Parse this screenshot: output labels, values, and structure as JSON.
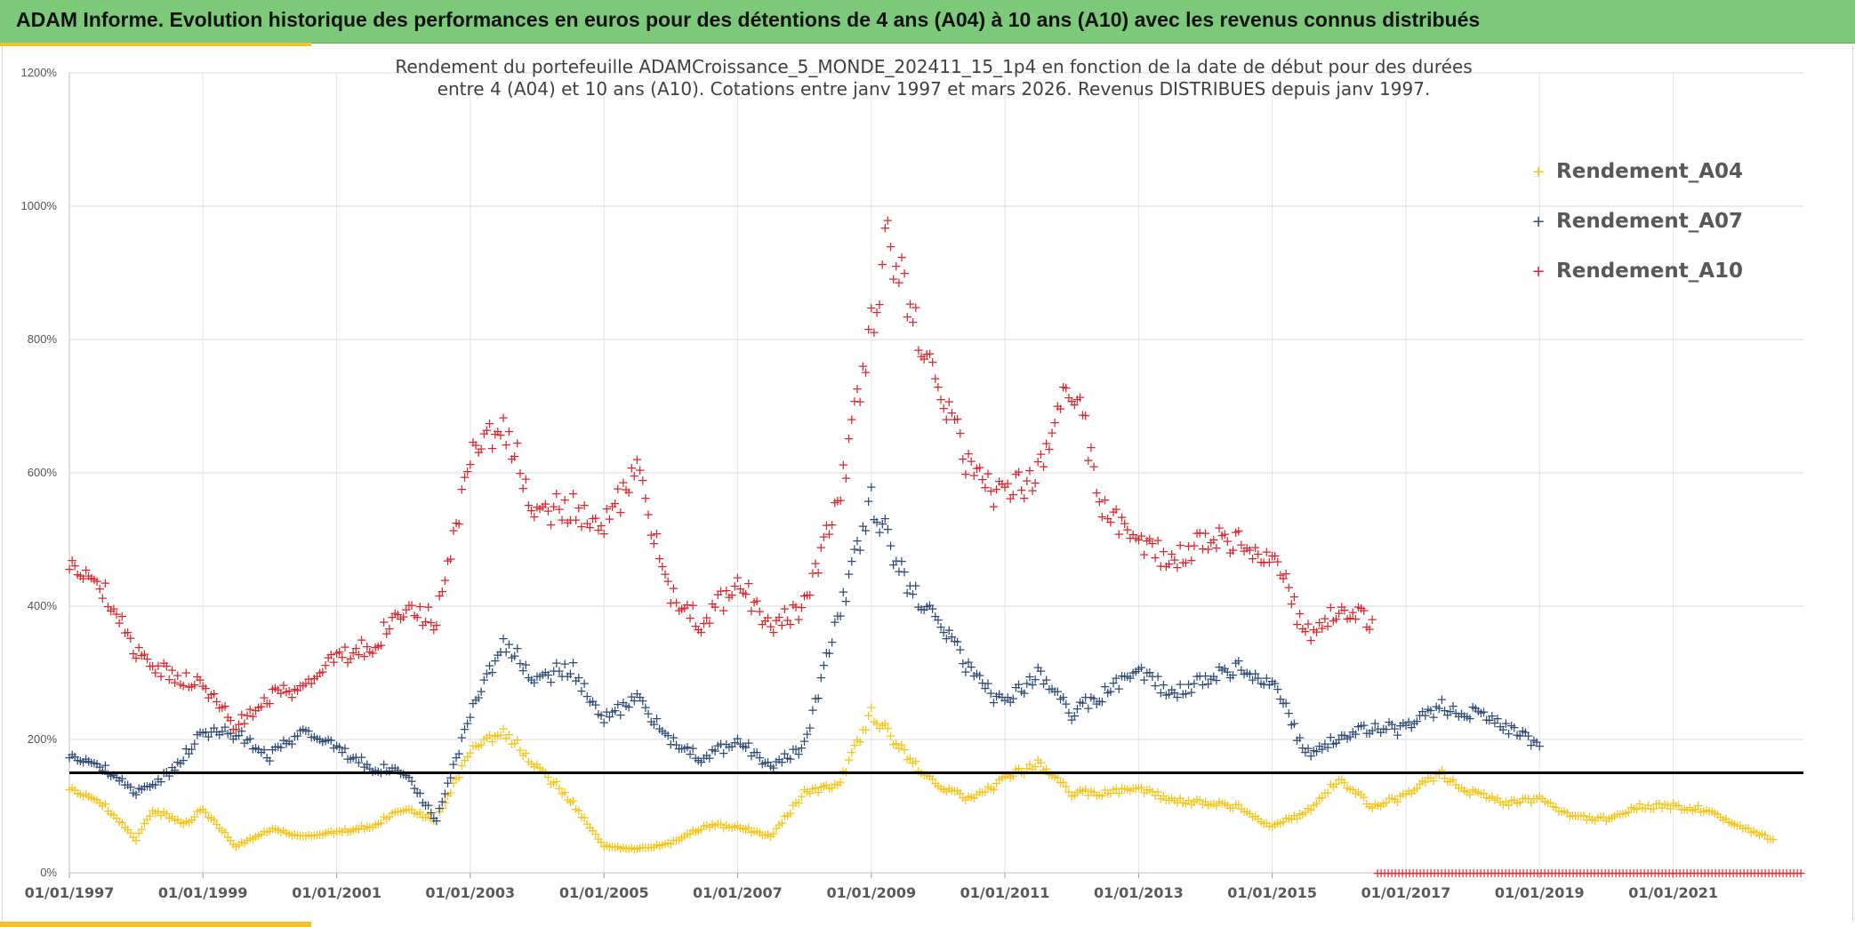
{
  "header": {
    "title": "ADAM Informe. Evolution historique des performances en euros pour des détentions de 4 ans (A04) à 10 ans (A10) avec les revenus connus distribués"
  },
  "chart_data": {
    "type": "scatter",
    "title_line1": "Rendement du portefeuille ADAMCroissance_5_MONDE_202411_15_1p4  en fonction de la date de début pour des durées",
    "title_line2": "entre 4 (A04) et 10 ans (A10). Cotations entre janv 1997 et mars 2026. Revenus DISTRIBUES depuis janv 1997.",
    "xlabel": "",
    "ylabel": "",
    "x_range": [
      "01/01/1997",
      "01/01/2023"
    ],
    "ylim": [
      0,
      1200
    ],
    "y_ticks": [
      "0%",
      "200%",
      "400%",
      "600%",
      "800%",
      "1000%",
      "1200%"
    ],
    "y_tick_values": [
      0,
      200,
      400,
      600,
      800,
      1000,
      1200
    ],
    "x_ticks": [
      "01/01/1997",
      "01/01/1999",
      "01/01/2001",
      "01/01/2003",
      "01/01/2005",
      "01/01/2007",
      "01/01/2009",
      "01/01/2011",
      "01/01/2013",
      "01/01/2015",
      "01/01/2017",
      "01/01/2019",
      "01/01/2021"
    ],
    "grid": true,
    "legend_position": "top-right",
    "reference_line": {
      "y": 150,
      "color": "#000000"
    },
    "series": [
      {
        "name": "Rendement_A04",
        "color": "#f5c518",
        "points": [
          [
            "01/01/1997",
            130
          ],
          [
            "01/07/1997",
            105
          ],
          [
            "01/01/1998",
            50
          ],
          [
            "01/04/1998",
            95
          ],
          [
            "01/10/1998",
            75
          ],
          [
            "01/01/1999",
            95
          ],
          [
            "01/07/1999",
            40
          ],
          [
            "01/01/2000",
            65
          ],
          [
            "01/07/2000",
            55
          ],
          [
            "01/01/2001",
            60
          ],
          [
            "01/07/2001",
            70
          ],
          [
            "01/01/2002",
            95
          ],
          [
            "01/07/2002",
            80
          ],
          [
            "01/01/2003",
            185
          ],
          [
            "01/07/2003",
            215
          ],
          [
            "01/01/2004",
            160
          ],
          [
            "01/07/2004",
            110
          ],
          [
            "01/01/2005",
            40
          ],
          [
            "01/07/2005",
            35
          ],
          [
            "01/01/2006",
            45
          ],
          [
            "01/07/2006",
            70
          ],
          [
            "01/01/2007",
            70
          ],
          [
            "01/07/2007",
            55
          ],
          [
            "01/01/2008",
            120
          ],
          [
            "01/07/2008",
            130
          ],
          [
            "01/01/2009",
            240
          ],
          [
            "01/07/2009",
            180
          ],
          [
            "01/01/2010",
            130
          ],
          [
            "01/07/2010",
            110
          ],
          [
            "01/01/2011",
            140
          ],
          [
            "01/07/2011",
            165
          ],
          [
            "01/01/2012",
            120
          ],
          [
            "01/07/2012",
            120
          ],
          [
            "01/01/2013",
            125
          ],
          [
            "01/07/2013",
            110
          ],
          [
            "01/01/2014",
            105
          ],
          [
            "01/07/2014",
            100
          ],
          [
            "01/01/2015",
            70
          ],
          [
            "01/07/2015",
            90
          ],
          [
            "01/01/2016",
            140
          ],
          [
            "01/07/2016",
            100
          ],
          [
            "01/01/2017",
            115
          ],
          [
            "01/07/2017",
            150
          ],
          [
            "01/01/2018",
            120
          ],
          [
            "01/07/2018",
            105
          ],
          [
            "01/01/2019",
            110
          ],
          [
            "01/07/2019",
            85
          ],
          [
            "01/01/2020",
            80
          ],
          [
            "01/07/2020",
            100
          ],
          [
            "01/01/2021",
            100
          ],
          [
            "01/07/2021",
            95
          ],
          [
            "01/01/2022",
            70
          ],
          [
            "01/07/2022",
            50
          ]
        ]
      },
      {
        "name": "Rendement_A07",
        "color": "#2f4a78",
        "points": [
          [
            "01/01/1997",
            180
          ],
          [
            "01/07/1997",
            160
          ],
          [
            "01/01/1998",
            120
          ],
          [
            "01/07/1998",
            150
          ],
          [
            "01/01/1999",
            210
          ],
          [
            "01/07/1999",
            210
          ],
          [
            "01/01/2000",
            175
          ],
          [
            "01/07/2000",
            215
          ],
          [
            "01/01/2001",
            185
          ],
          [
            "01/07/2001",
            160
          ],
          [
            "01/01/2002",
            150
          ],
          [
            "01/07/2002",
            80
          ],
          [
            "01/01/2003",
            240
          ],
          [
            "01/07/2003",
            350
          ],
          [
            "01/01/2004",
            290
          ],
          [
            "01/07/2004",
            310
          ],
          [
            "01/01/2005",
            230
          ],
          [
            "01/07/2005",
            260
          ],
          [
            "01/01/2006",
            200
          ],
          [
            "01/07/2006",
            170
          ],
          [
            "01/01/2007",
            200
          ],
          [
            "01/07/2007",
            160
          ],
          [
            "01/01/2008",
            190
          ],
          [
            "01/07/2008",
            380
          ],
          [
            "01/01/2009",
            560
          ],
          [
            "01/07/2009",
            440
          ],
          [
            "01/01/2010",
            380
          ],
          [
            "01/07/2010",
            300
          ],
          [
            "01/01/2011",
            250
          ],
          [
            "01/07/2011",
            300
          ],
          [
            "01/01/2012",
            240
          ],
          [
            "01/07/2012",
            270
          ],
          [
            "01/01/2013",
            300
          ],
          [
            "01/07/2013",
            270
          ],
          [
            "01/01/2014",
            290
          ],
          [
            "01/07/2014",
            310
          ],
          [
            "01/01/2015",
            290
          ],
          [
            "01/07/2015",
            180
          ],
          [
            "01/01/2016",
            200
          ],
          [
            "01/07/2016",
            220
          ],
          [
            "01/01/2017",
            215
          ],
          [
            "01/07/2017",
            250
          ],
          [
            "01/01/2018",
            240
          ],
          [
            "01/07/2018",
            220
          ],
          [
            "01/01/2019",
            190
          ]
        ]
      },
      {
        "name": "Rendement_A10",
        "color": "#e0242b",
        "points": [
          [
            "01/01/1997",
            475
          ],
          [
            "01/07/1997",
            430
          ],
          [
            "01/01/1998",
            330
          ],
          [
            "01/07/1998",
            300
          ],
          [
            "01/01/1999",
            280
          ],
          [
            "01/07/1999",
            220
          ],
          [
            "01/01/2000",
            265
          ],
          [
            "01/07/2000",
            280
          ],
          [
            "01/01/2001",
            320
          ],
          [
            "01/07/2001",
            340
          ],
          [
            "01/01/2002",
            390
          ],
          [
            "01/07/2002",
            380
          ],
          [
            "01/01/2003",
            630
          ],
          [
            "01/07/2003",
            680
          ],
          [
            "01/01/2004",
            540
          ],
          [
            "01/07/2004",
            550
          ],
          [
            "01/01/2005",
            520
          ],
          [
            "01/07/2005",
            600
          ],
          [
            "01/01/2006",
            420
          ],
          [
            "01/07/2006",
            370
          ],
          [
            "01/01/2007",
            440
          ],
          [
            "01/07/2007",
            370
          ],
          [
            "01/01/2008",
            400
          ],
          [
            "01/07/2008",
            550
          ],
          [
            "01/01/2009",
            820
          ],
          [
            "01/04/2009",
            950
          ],
          [
            "01/01/2010",
            730
          ],
          [
            "01/07/2010",
            600
          ],
          [
            "01/01/2011",
            560
          ],
          [
            "01/07/2011",
            600
          ],
          [
            "01/01/2012",
            740
          ],
          [
            "01/07/2012",
            540
          ],
          [
            "01/01/2013",
            490
          ],
          [
            "01/07/2013",
            470
          ],
          [
            "01/01/2014",
            500
          ],
          [
            "01/07/2014",
            500
          ],
          [
            "01/01/2015",
            480
          ],
          [
            "01/07/2015",
            360
          ],
          [
            "01/01/2016",
            390
          ],
          [
            "01/07/2016",
            380
          ]
        ]
      }
    ]
  }
}
